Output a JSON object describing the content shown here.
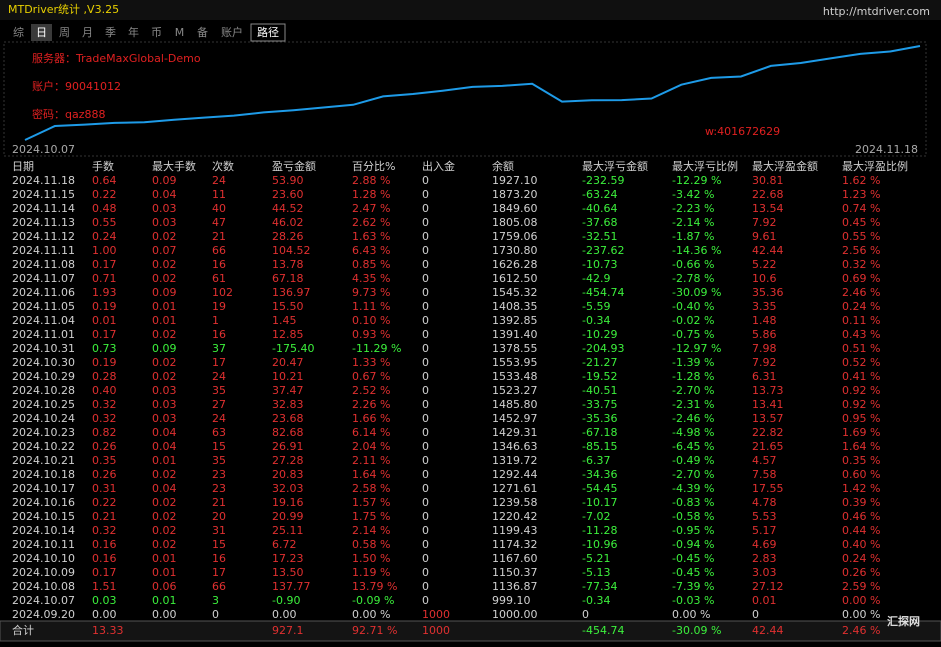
{
  "window": {
    "title": "MTDriver统计 ,V3.25",
    "link": "http://mtdriver.com",
    "tabs": [
      "综",
      "日",
      "周",
      "月",
      "季",
      "年",
      "币",
      "M",
      "备",
      "账户",
      "路径"
    ]
  },
  "overlay": {
    "server": "服务器：TradeMaxGlobal-Demo",
    "account": "账户：90041012",
    "password": "密码：qaz888",
    "contact": "w:401672629",
    "watermark": "汇探网"
  },
  "chart_data": {
    "type": "line",
    "color": "#1e9be8",
    "categories": [
      "2024.10.07",
      null,
      null,
      null,
      null,
      null,
      null,
      null,
      null,
      null,
      null,
      null,
      null,
      null,
      null,
      null,
      null,
      null,
      null,
      null,
      null,
      null,
      null,
      null,
      null,
      null,
      null,
      null,
      null,
      null,
      "2024.11.18"
    ],
    "values": [
      999.1,
      1136.87,
      1150.37,
      1167.6,
      1174.32,
      1199.43,
      1220.42,
      1239.58,
      1271.61,
      1292.44,
      1319.72,
      1346.63,
      1429.31,
      1452.97,
      1485.8,
      1523.27,
      1533.48,
      1553.95,
      1378.55,
      1391.4,
      1392.85,
      1408.35,
      1545.32,
      1612.5,
      1626.28,
      1730.8,
      1759.06,
      1805.08,
      1849.6,
      1873.2,
      1927.1
    ]
  },
  "table": {
    "headers": [
      "日期",
      "手数",
      "最大手数",
      "次数",
      "盈亏金额",
      "百分比%",
      "出入金",
      "余额",
      "最大浮亏金额",
      "最大浮亏比例",
      "最大浮盈金额",
      "最大浮盈比例"
    ],
    "rows": [
      [
        "2024.11.18",
        "0.64",
        "0.09",
        "24",
        "53.90",
        "2.88 %",
        "0",
        "1927.10",
        "-232.59",
        "-12.29 %",
        "30.81",
        "1.62 %"
      ],
      [
        "2024.11.15",
        "0.22",
        "0.04",
        "11",
        "23.60",
        "1.28 %",
        "0",
        "1873.20",
        "-63.24",
        "-3.42 %",
        "22.68",
        "1.23 %"
      ],
      [
        "2024.11.14",
        "0.48",
        "0.03",
        "40",
        "44.52",
        "2.47 %",
        "0",
        "1849.60",
        "-40.64",
        "-2.23 %",
        "13.54",
        "0.74 %"
      ],
      [
        "2024.11.13",
        "0.55",
        "0.03",
        "47",
        "46.02",
        "2.62 %",
        "0",
        "1805.08",
        "-37.68",
        "-2.14 %",
        "7.92",
        "0.45 %"
      ],
      [
        "2024.11.12",
        "0.24",
        "0.02",
        "21",
        "28.26",
        "1.63 %",
        "0",
        "1759.06",
        "-32.51",
        "-1.87 %",
        "9.61",
        "0.55 %"
      ],
      [
        "2024.11.11",
        "1.00",
        "0.07",
        "66",
        "104.52",
        "6.43 %",
        "0",
        "1730.80",
        "-237.62",
        "-14.36 %",
        "42.44",
        "2.56 %"
      ],
      [
        "2024.11.08",
        "0.17",
        "0.02",
        "16",
        "13.78",
        "0.85 %",
        "0",
        "1626.28",
        "-10.73",
        "-0.66 %",
        "5.22",
        "0.32 %"
      ],
      [
        "2024.11.07",
        "0.71",
        "0.02",
        "61",
        "67.18",
        "4.35 %",
        "0",
        "1612.50",
        "-42.9",
        "-2.78 %",
        "10.6",
        "0.69 %"
      ],
      [
        "2024.11.06",
        "1.93",
        "0.09",
        "102",
        "136.97",
        "9.73 %",
        "0",
        "1545.32",
        "-454.74",
        "-30.09 %",
        "35.36",
        "2.46 %"
      ],
      [
        "2024.11.05",
        "0.19",
        "0.01",
        "19",
        "15.50",
        "1.11 %",
        "0",
        "1408.35",
        "-5.59",
        "-0.40 %",
        "3.35",
        "0.24 %"
      ],
      [
        "2024.11.04",
        "0.01",
        "0.01",
        "1",
        "1.45",
        "0.10 %",
        "0",
        "1392.85",
        "-0.34",
        "-0.02 %",
        "1.48",
        "0.11 %"
      ],
      [
        "2024.11.01",
        "0.17",
        "0.02",
        "16",
        "12.85",
        "0.93 %",
        "0",
        "1391.40",
        "-10.29",
        "-0.75 %",
        "5.86",
        "0.43 %"
      ],
      [
        "2024.10.31",
        "0.73",
        "0.09",
        "37",
        "-175.40",
        "-11.29 %",
        "0",
        "1378.55",
        "-204.93",
        "-12.97 %",
        "7.98",
        "0.51 %"
      ],
      [
        "2024.10.30",
        "0.19",
        "0.02",
        "17",
        "20.47",
        "1.33 %",
        "0",
        "1553.95",
        "-21.27",
        "-1.39 %",
        "7.92",
        "0.52 %"
      ],
      [
        "2024.10.29",
        "0.28",
        "0.02",
        "24",
        "10.21",
        "0.67 %",
        "0",
        "1533.48",
        "-19.52",
        "-1.28 %",
        "6.31",
        "0.41 %"
      ],
      [
        "2024.10.28",
        "0.40",
        "0.03",
        "35",
        "37.47",
        "2.52 %",
        "0",
        "1523.27",
        "-40.51",
        "-2.70 %",
        "13.73",
        "0.92 %"
      ],
      [
        "2024.10.25",
        "0.32",
        "0.03",
        "27",
        "32.83",
        "2.26 %",
        "0",
        "1485.80",
        "-33.75",
        "-2.31 %",
        "13.41",
        "0.92 %"
      ],
      [
        "2024.10.24",
        "0.32",
        "0.03",
        "24",
        "23.68",
        "1.66 %",
        "0",
        "1452.97",
        "-35.36",
        "-2.46 %",
        "13.57",
        "0.95 %"
      ],
      [
        "2024.10.23",
        "0.82",
        "0.04",
        "63",
        "82.68",
        "6.14 %",
        "0",
        "1429.31",
        "-67.18",
        "-4.98 %",
        "22.82",
        "1.69 %"
      ],
      [
        "2024.10.22",
        "0.26",
        "0.04",
        "15",
        "26.91",
        "2.04 %",
        "0",
        "1346.63",
        "-85.15",
        "-6.45 %",
        "21.65",
        "1.64 %"
      ],
      [
        "2024.10.21",
        "0.35",
        "0.01",
        "35",
        "27.28",
        "2.11 %",
        "0",
        "1319.72",
        "-6.37",
        "-0.49 %",
        "4.57",
        "0.35 %"
      ],
      [
        "2024.10.18",
        "0.26",
        "0.02",
        "23",
        "20.83",
        "1.64 %",
        "0",
        "1292.44",
        "-34.36",
        "-2.70 %",
        "7.58",
        "0.60 %"
      ],
      [
        "2024.10.17",
        "0.31",
        "0.04",
        "23",
        "32.03",
        "2.58 %",
        "0",
        "1271.61",
        "-54.45",
        "-4.39 %",
        "17.55",
        "1.42 %"
      ],
      [
        "2024.10.16",
        "0.22",
        "0.02",
        "21",
        "19.16",
        "1.57 %",
        "0",
        "1239.58",
        "-10.17",
        "-0.83 %",
        "4.78",
        "0.39 %"
      ],
      [
        "2024.10.15",
        "0.21",
        "0.02",
        "20",
        "20.99",
        "1.75 %",
        "0",
        "1220.42",
        "-7.02",
        "-0.58 %",
        "5.53",
        "0.46 %"
      ],
      [
        "2024.10.14",
        "0.32",
        "0.02",
        "31",
        "25.11",
        "2.14 %",
        "0",
        "1199.43",
        "-11.28",
        "-0.95 %",
        "5.17",
        "0.44 %"
      ],
      [
        "2024.10.11",
        "0.16",
        "0.02",
        "15",
        "6.72",
        "0.58 %",
        "0",
        "1174.32",
        "-10.96",
        "-0.94 %",
        "4.69",
        "0.40 %"
      ],
      [
        "2024.10.10",
        "0.16",
        "0.01",
        "16",
        "17.23",
        "1.50 %",
        "0",
        "1167.60",
        "-5.21",
        "-0.45 %",
        "2.83",
        "0.24 %"
      ],
      [
        "2024.10.09",
        "0.17",
        "0.01",
        "17",
        "13.50",
        "1.19 %",
        "0",
        "1150.37",
        "-5.13",
        "-0.45 %",
        "3.03",
        "0.26 %"
      ],
      [
        "2024.10.08",
        "1.51",
        "0.06",
        "66",
        "137.77",
        "13.79 %",
        "0",
        "1136.87",
        "-77.34",
        "-7.39 %",
        "27.12",
        "2.59 %"
      ],
      [
        "2024.10.07",
        "0.03",
        "0.01",
        "3",
        "-0.90",
        "-0.09 %",
        "0",
        "999.10",
        "-0.34",
        "-0.03 %",
        "0.01",
        "0.00 %"
      ],
      [
        "2024.09.20",
        "0.00",
        "0.00",
        "0",
        "0.00",
        "0.00 %",
        "1000",
        "1000.00",
        "0",
        "0.00 %",
        "0",
        "0.00 %"
      ]
    ],
    "total": [
      "合计",
      "13.33",
      null,
      null,
      "927.1",
      "92.71 %",
      "1000",
      null,
      "-454.74",
      "-30.09 %",
      "42.44",
      "2.46 %"
    ]
  }
}
